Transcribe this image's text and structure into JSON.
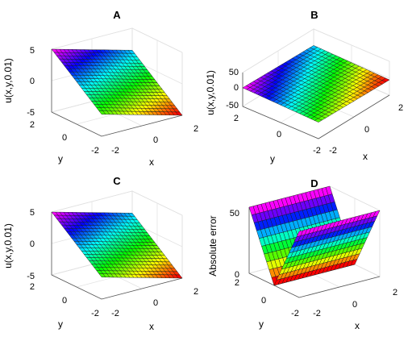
{
  "chart_data": [
    {
      "type": "surface",
      "title": "A",
      "xlabel": "x",
      "ylabel": "y",
      "zlabel": "u(x,y,0.01)",
      "xlim": [
        -2,
        2
      ],
      "ylim": [
        -2,
        2
      ],
      "zlim": [
        -5,
        5
      ],
      "x_ticks": [
        "-2",
        "0",
        "2"
      ],
      "y_ticks": [
        "-2",
        "0",
        "2"
      ],
      "z_ticks": [
        "-5",
        "0",
        "5"
      ],
      "grid": true,
      "colormap": "hsv",
      "mesh": 20,
      "surface": "plane",
      "corner_values": {
        "x_min_y_min": -1.5,
        "x_max_y_min": -5,
        "x_min_y_max": 5,
        "x_max_y_max": 1.5
      }
    },
    {
      "type": "surface",
      "title": "B",
      "xlabel": "x",
      "ylabel": "y",
      "zlabel": "u(x,y,0.01)",
      "xlim": [
        -2,
        2
      ],
      "ylim": [
        -2,
        2
      ],
      "zlim": [
        -50,
        50
      ],
      "x_ticks": [
        "-2",
        "0",
        "2"
      ],
      "y_ticks": [
        "-2",
        "0",
        "2"
      ],
      "z_ticks": [
        "-50",
        "0",
        "50"
      ],
      "grid": true,
      "colormap": "hsv",
      "mesh": 20,
      "surface": "plane",
      "corner_values": {
        "x_min_y_min": -1.5,
        "x_max_y_min": -5,
        "x_min_y_max": 5,
        "x_max_y_max": 1.5
      }
    },
    {
      "type": "surface",
      "title": "C",
      "xlabel": "x",
      "ylabel": "y",
      "zlabel": "u(x,y,0.01)",
      "xlim": [
        -2,
        2
      ],
      "ylim": [
        -2,
        2
      ],
      "zlim": [
        -5,
        5
      ],
      "x_ticks": [
        "-2",
        "0",
        "2"
      ],
      "y_ticks": [
        "-2",
        "0",
        "2"
      ],
      "z_ticks": [
        "-5",
        "0",
        "5"
      ],
      "grid": true,
      "colormap": "hsv",
      "mesh": 20,
      "surface": "plane",
      "corner_values": {
        "x_min_y_min": -1.5,
        "x_max_y_min": -5,
        "x_min_y_max": 5,
        "x_max_y_max": 1.5
      }
    },
    {
      "type": "surface",
      "title": "D",
      "xlabel": "x",
      "ylabel": "y",
      "zlabel": "Absolute error",
      "xlim": [
        -2,
        2
      ],
      "ylim": [
        -2,
        2
      ],
      "zlim": [
        0,
        50
      ],
      "x_ticks": [
        "-2",
        "0",
        "2"
      ],
      "y_ticks": [
        "-2",
        "0",
        "2"
      ],
      "z_ticks": [
        "0",
        "50"
      ],
      "grid": true,
      "colormap": "hsv",
      "mesh": 20,
      "surface": "v-shape",
      "error_range": [
        0,
        50
      ]
    }
  ]
}
